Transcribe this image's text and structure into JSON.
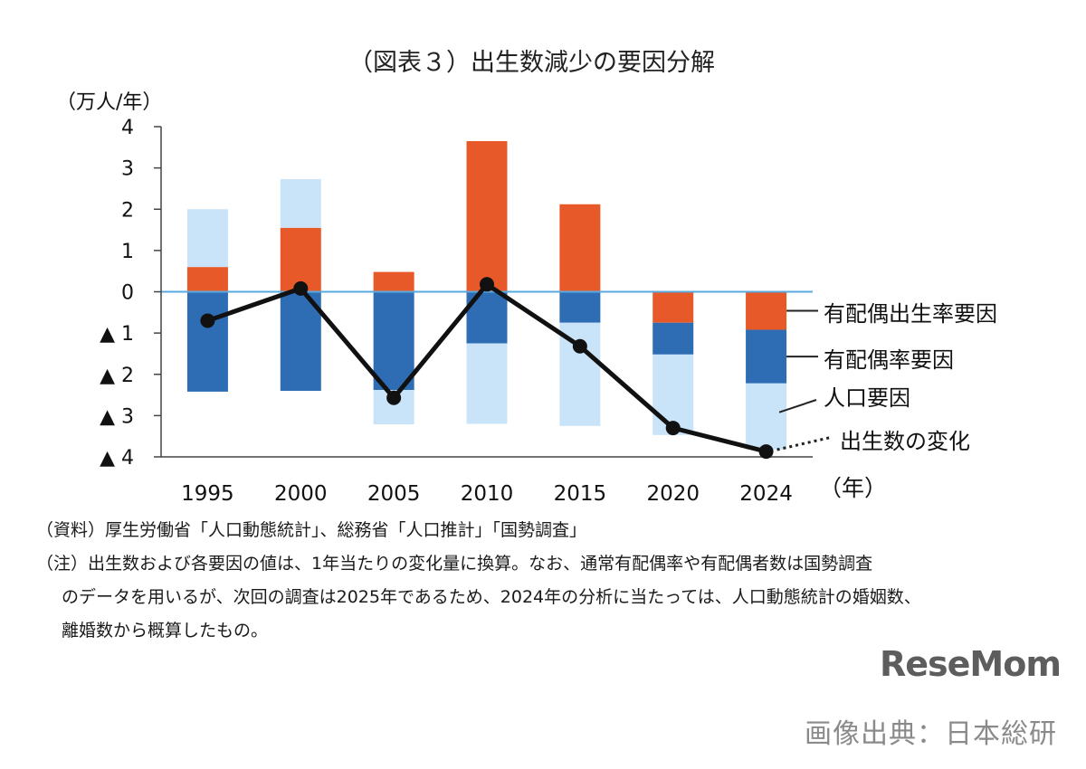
{
  "title": "（図表３）出生数減少の要因分解",
  "ylabel": "（万人/年）",
  "xunit": "（年）",
  "notes": {
    "source": "（資料）厚生労働省「人口動態統計」、総務省「人口推計」「国勢調査」",
    "note_line1": "（注）出生数および各要因の値は、1年当たりの変化量に換算。なお、通常有配偶率や有配偶者数は国勢調査",
    "note_line2": "のデータを用いるが、次回の調査は2025年であるため、2024年の分析に当たっては、人口動態統計の婚姻数、",
    "note_line3": "離婚数から概算したもの。"
  },
  "logo_text": "ReseMom",
  "credit": "画像出典：日本総研",
  "chart_data": {
    "type": "bar",
    "stacked": true,
    "categories": [
      "1995",
      "2000",
      "2005",
      "2010",
      "2015",
      "2020",
      "2024"
    ],
    "ylim": [
      -4,
      4
    ],
    "yticks": [
      {
        "value": 4,
        "label": "4"
      },
      {
        "value": 3,
        "label": "3"
      },
      {
        "value": 2,
        "label": "2"
      },
      {
        "value": 1,
        "label": "1"
      },
      {
        "value": 0,
        "label": "0"
      },
      {
        "value": -1,
        "label": "▲ 1"
      },
      {
        "value": -2,
        "label": "▲ 2"
      },
      {
        "value": -3,
        "label": "▲ 3"
      },
      {
        "value": -4,
        "label": "▲ 4"
      }
    ],
    "series": [
      {
        "name": "有配偶出生率要因",
        "kind": "bar",
        "color": "#e8592a",
        "values": [
          0.6,
          1.55,
          0.48,
          3.65,
          2.12,
          -0.75,
          -0.92
        ]
      },
      {
        "name": "有配偶率要因",
        "kind": "bar",
        "color": "#2e6db4",
        "values": [
          -2.42,
          -2.4,
          -2.38,
          -1.25,
          -0.75,
          -0.77,
          -1.3
        ]
      },
      {
        "name": "人口要因",
        "kind": "bar",
        "color": "#c9e4f8",
        "values": [
          1.4,
          1.18,
          -0.83,
          -1.95,
          -2.5,
          -1.95,
          -1.6
        ]
      },
      {
        "name": "出生数の変化",
        "kind": "line",
        "color": "#111111",
        "values": [
          -0.7,
          0.08,
          -2.57,
          0.18,
          -1.32,
          -3.3,
          -3.87
        ]
      }
    ],
    "grid": false,
    "legend_position": "right"
  }
}
